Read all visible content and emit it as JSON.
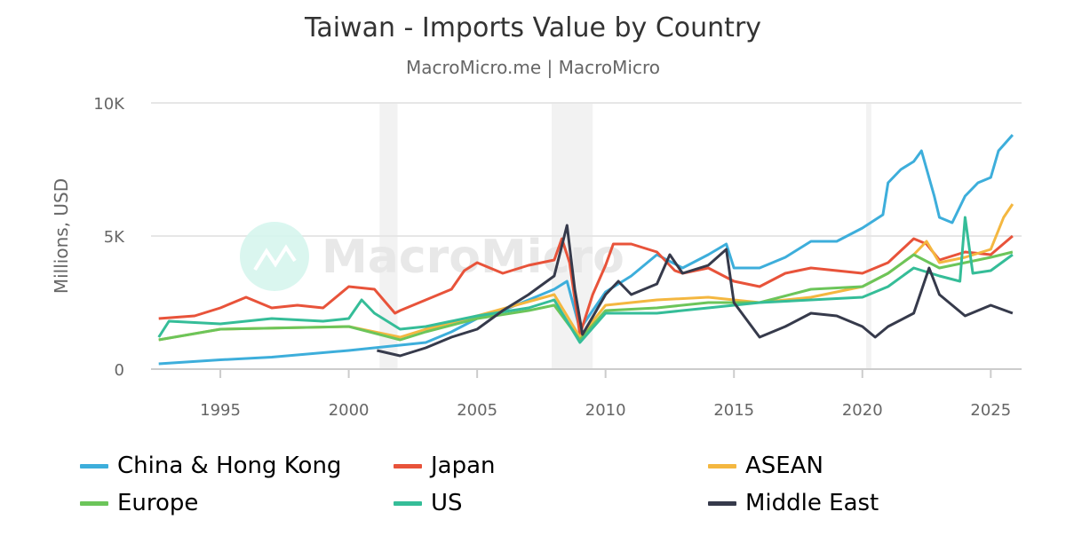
{
  "chart_data": {
    "type": "line",
    "title": "Taiwan - Imports Value by Country",
    "subtitle": "MacroMicro.me | MacroMicro",
    "watermark": "MacroMicro",
    "xlabel": "",
    "ylabel": "Millions, USD",
    "xlim": [
      1992.3,
      2026.2
    ],
    "ylim": [
      0,
      10000
    ],
    "xticks": [
      1995,
      2000,
      2005,
      2010,
      2015,
      2020,
      2025
    ],
    "yticks": [
      {
        "v": 0,
        "label": "0"
      },
      {
        "v": 5000,
        "label": "5K"
      },
      {
        "v": 10000,
        "label": "10K"
      }
    ],
    "grid": true,
    "legend_position": "bottom",
    "shaded_periods": [
      [
        2001.2,
        2001.9
      ],
      [
        2007.9,
        2009.5
      ],
      [
        2020.15,
        2020.35
      ]
    ],
    "series": [
      {
        "name": "China & Hong Kong",
        "color": "#3DAEDB",
        "points": [
          [
            1992.6,
            200
          ],
          [
            1995,
            350
          ],
          [
            1997,
            450
          ],
          [
            2000,
            700
          ],
          [
            2001,
            800
          ],
          [
            2002,
            900
          ],
          [
            2003,
            1000
          ],
          [
            2004,
            1400
          ],
          [
            2005,
            1900
          ],
          [
            2006,
            2200
          ],
          [
            2007,
            2600
          ],
          [
            2008,
            3000
          ],
          [
            2008.5,
            3300
          ],
          [
            2009,
            1500
          ],
          [
            2009.5,
            2200
          ],
          [
            2010,
            2900
          ],
          [
            2011,
            3500
          ],
          [
            2012,
            4300
          ],
          [
            2013,
            3800
          ],
          [
            2014,
            4300
          ],
          [
            2014.7,
            4700
          ],
          [
            2015,
            3800
          ],
          [
            2016,
            3800
          ],
          [
            2017,
            4200
          ],
          [
            2018,
            4800
          ],
          [
            2019,
            4800
          ],
          [
            2020,
            5300
          ],
          [
            2020.8,
            5800
          ],
          [
            2021,
            7000
          ],
          [
            2021.5,
            7500
          ],
          [
            2022,
            7800
          ],
          [
            2022.3,
            8200
          ],
          [
            2022.8,
            6500
          ],
          [
            2023,
            5700
          ],
          [
            2023.5,
            5500
          ],
          [
            2024,
            6500
          ],
          [
            2024.5,
            7000
          ],
          [
            2025,
            7200
          ],
          [
            2025.3,
            8200
          ],
          [
            2025.85,
            8800
          ]
        ]
      },
      {
        "name": "Japan",
        "color": "#E8533A",
        "points": [
          [
            1992.6,
            1900
          ],
          [
            1994,
            2000
          ],
          [
            1995,
            2300
          ],
          [
            1996,
            2700
          ],
          [
            1997,
            2300
          ],
          [
            1998,
            2400
          ],
          [
            1999,
            2300
          ],
          [
            2000,
            3100
          ],
          [
            2001,
            3000
          ],
          [
            2001.8,
            2100
          ],
          [
            2002,
            2200
          ],
          [
            2003,
            2600
          ],
          [
            2004,
            3000
          ],
          [
            2004.5,
            3700
          ],
          [
            2005,
            4000
          ],
          [
            2006,
            3600
          ],
          [
            2007,
            3900
          ],
          [
            2008,
            4100
          ],
          [
            2008.3,
            4900
          ],
          [
            2008.6,
            4000
          ],
          [
            2009,
            1300
          ],
          [
            2009.5,
            2800
          ],
          [
            2010,
            3900
          ],
          [
            2010.3,
            4700
          ],
          [
            2011,
            4700
          ],
          [
            2012,
            4400
          ],
          [
            2012.7,
            3700
          ],
          [
            2013,
            3600
          ],
          [
            2014,
            3800
          ],
          [
            2015,
            3300
          ],
          [
            2016,
            3100
          ],
          [
            2017,
            3600
          ],
          [
            2018,
            3800
          ],
          [
            2019,
            3700
          ],
          [
            2020,
            3600
          ],
          [
            2021,
            4000
          ],
          [
            2022,
            4900
          ],
          [
            2022.5,
            4700
          ],
          [
            2023,
            4100
          ],
          [
            2024,
            4400
          ],
          [
            2025,
            4300
          ],
          [
            2025.85,
            5000
          ]
        ]
      },
      {
        "name": "ASEAN",
        "color": "#F4B740",
        "points": [
          [
            1992.6,
            1100
          ],
          [
            1995,
            1500
          ],
          [
            2000,
            1600
          ],
          [
            2002,
            1200
          ],
          [
            2003,
            1500
          ],
          [
            2005,
            2000
          ],
          [
            2008,
            2800
          ],
          [
            2009,
            1200
          ],
          [
            2010,
            2400
          ],
          [
            2012,
            2600
          ],
          [
            2014,
            2700
          ],
          [
            2016,
            2500
          ],
          [
            2018,
            2700
          ],
          [
            2020,
            3100
          ],
          [
            2021,
            3600
          ],
          [
            2022,
            4300
          ],
          [
            2022.5,
            4800
          ],
          [
            2023,
            4000
          ],
          [
            2024,
            4200
          ],
          [
            2025,
            4500
          ],
          [
            2025.5,
            5700
          ],
          [
            2025.85,
            6200
          ]
        ]
      },
      {
        "name": "Europe",
        "color": "#6CC55A",
        "points": [
          [
            1992.6,
            1100
          ],
          [
            1995,
            1500
          ],
          [
            2000,
            1600
          ],
          [
            2002,
            1100
          ],
          [
            2003,
            1400
          ],
          [
            2005,
            1900
          ],
          [
            2007,
            2200
          ],
          [
            2008,
            2400
          ],
          [
            2009,
            1100
          ],
          [
            2010,
            2200
          ],
          [
            2012,
            2300
          ],
          [
            2014,
            2500
          ],
          [
            2016,
            2500
          ],
          [
            2018,
            3000
          ],
          [
            2020,
            3100
          ],
          [
            2021,
            3600
          ],
          [
            2022,
            4300
          ],
          [
            2023,
            3800
          ],
          [
            2024,
            4000
          ],
          [
            2025,
            4200
          ],
          [
            2025.85,
            4400
          ]
        ]
      },
      {
        "name": "US",
        "color": "#35BD98",
        "points": [
          [
            1992.6,
            1200
          ],
          [
            1993,
            1800
          ],
          [
            1995,
            1700
          ],
          [
            1997,
            1900
          ],
          [
            1999,
            1800
          ],
          [
            2000,
            1900
          ],
          [
            2000.5,
            2600
          ],
          [
            2001,
            2100
          ],
          [
            2002,
            1500
          ],
          [
            2003,
            1600
          ],
          [
            2005,
            2000
          ],
          [
            2007,
            2300
          ],
          [
            2008,
            2600
          ],
          [
            2009,
            1000
          ],
          [
            2010,
            2100
          ],
          [
            2012,
            2100
          ],
          [
            2014,
            2300
          ],
          [
            2016,
            2500
          ],
          [
            2018,
            2600
          ],
          [
            2020,
            2700
          ],
          [
            2021,
            3100
          ],
          [
            2022,
            3800
          ],
          [
            2023,
            3500
          ],
          [
            2023.8,
            3300
          ],
          [
            2024,
            5700
          ],
          [
            2024.3,
            3600
          ],
          [
            2025,
            3700
          ],
          [
            2025.85,
            4300
          ]
        ]
      },
      {
        "name": "Middle East",
        "color": "#363A4B",
        "points": [
          [
            2001.1,
            700
          ],
          [
            2002,
            500
          ],
          [
            2003,
            800
          ],
          [
            2004,
            1200
          ],
          [
            2005,
            1500
          ],
          [
            2006,
            2200
          ],
          [
            2007,
            2800
          ],
          [
            2008,
            3500
          ],
          [
            2008.5,
            5400
          ],
          [
            2008.8,
            3000
          ],
          [
            2009.1,
            1300
          ],
          [
            2010,
            2800
          ],
          [
            2010.5,
            3300
          ],
          [
            2011,
            2800
          ],
          [
            2012,
            3200
          ],
          [
            2012.5,
            4300
          ],
          [
            2013,
            3600
          ],
          [
            2014,
            3900
          ],
          [
            2014.7,
            4500
          ],
          [
            2015,
            2500
          ],
          [
            2016,
            1200
          ],
          [
            2017,
            1600
          ],
          [
            2018,
            2100
          ],
          [
            2019,
            2000
          ],
          [
            2020,
            1600
          ],
          [
            2020.5,
            1200
          ],
          [
            2021,
            1600
          ],
          [
            2022,
            2100
          ],
          [
            2022.6,
            3800
          ],
          [
            2023,
            2800
          ],
          [
            2024,
            2000
          ],
          [
            2025,
            2400
          ],
          [
            2025.85,
            2100
          ]
        ]
      }
    ]
  }
}
